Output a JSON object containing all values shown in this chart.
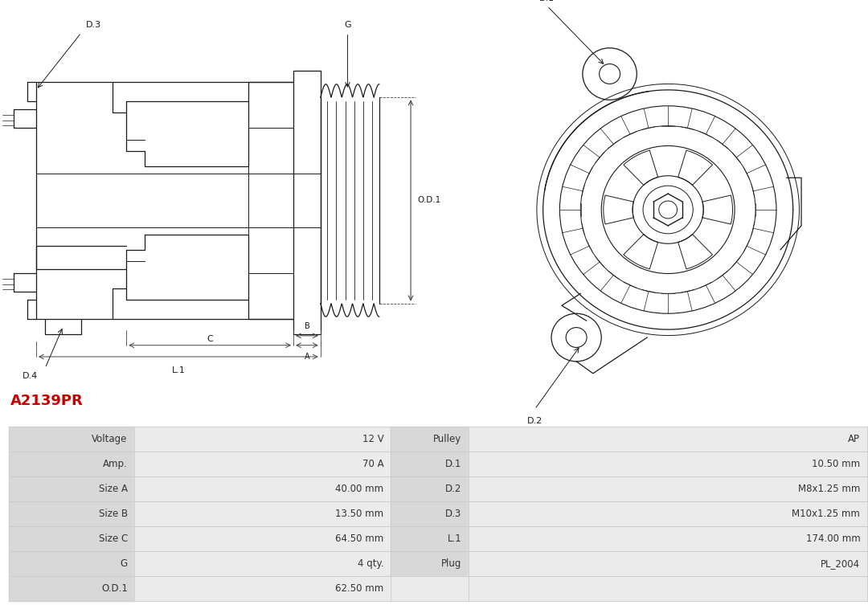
{
  "title": "A2139PR",
  "title_color": "#cc0000",
  "bg_color": "#ffffff",
  "table_col1_bg": "#d8d8d8",
  "table_col2_bg": "#ebebeb",
  "table_border": "#cccccc",
  "left_col": [
    "Voltage",
    "Amp.",
    "Size A",
    "Size B",
    "Size C",
    "G",
    "O.D.1"
  ],
  "left_val": [
    "12 V",
    "70 A",
    "40.00 mm",
    "13.50 mm",
    "64.50 mm",
    "4 qty.",
    "62.50 mm"
  ],
  "mid_col": [
    "Pulley",
    "D.1",
    "D.2",
    "D.3",
    "L.1",
    "Plug",
    ""
  ],
  "mid_val": [
    "AP",
    "10.50 mm",
    "M8x1.25 mm",
    "M10x1.25 mm",
    "174.00 mm",
    "PL_2004",
    ""
  ],
  "line_color": "#1a1a1a",
  "dim_color": "#444444"
}
